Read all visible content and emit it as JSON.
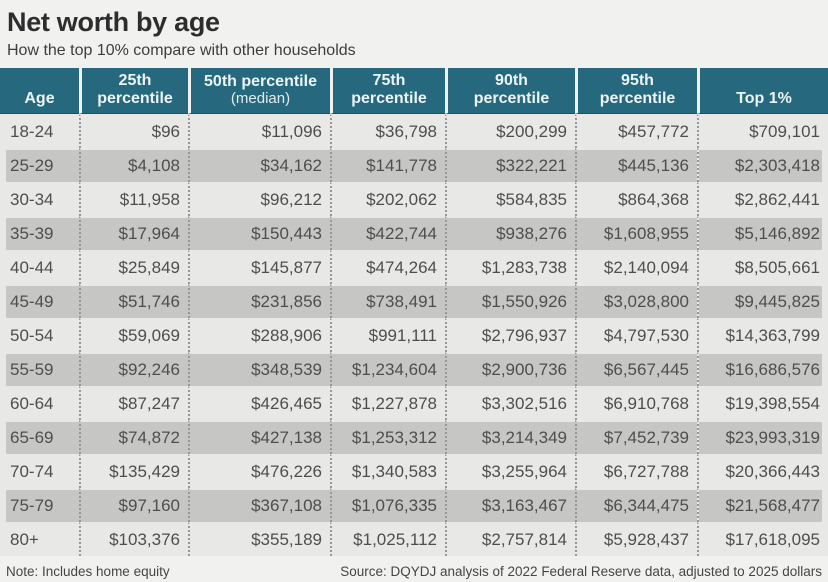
{
  "title": "Net worth by age",
  "subtitle": "How the top 10% compare with other households",
  "colors": {
    "header_bg": "#26697e",
    "header_text": "#edf4f6",
    "row_light": "#e8e8e7",
    "row_dark": "#c6c6c5",
    "page_bg": "#f1f1f0",
    "body_text": "#4e4e4e",
    "title_text": "#2d2d2d"
  },
  "table": {
    "columns": [
      {
        "line1": "Age",
        "line2": "",
        "sub_style": "bold"
      },
      {
        "line1": "25th",
        "line2": "percentile",
        "sub_style": "bold"
      },
      {
        "line1": "50th percentile",
        "line2": "(median)",
        "sub_style": "normal"
      },
      {
        "line1": "75th",
        "line2": "percentile",
        "sub_style": "bold"
      },
      {
        "line1": "90th",
        "line2": "percentile",
        "sub_style": "bold"
      },
      {
        "line1": "95th",
        "line2": "percentile",
        "sub_style": "bold"
      },
      {
        "line1": "Top 1%",
        "line2": "",
        "sub_style": "bold"
      }
    ]
  },
  "chart_data": {
    "type": "table",
    "title": "Net worth by age",
    "subtitle": "How the top 10% compare with other households",
    "columns": [
      "Age",
      "25th percentile",
      "50th percentile (median)",
      "75th percentile",
      "90th percentile",
      "95th percentile",
      "Top 1%"
    ],
    "currency_prefix": "$",
    "rows": [
      {
        "age": "18-24",
        "values": [
          96,
          11096,
          36798,
          200299,
          457772,
          709101
        ]
      },
      {
        "age": "25-29",
        "values": [
          4108,
          34162,
          141778,
          322221,
          445136,
          2303418
        ]
      },
      {
        "age": "30-34",
        "values": [
          11958,
          96212,
          202062,
          584835,
          864368,
          2862441
        ]
      },
      {
        "age": "35-39",
        "values": [
          17964,
          150443,
          422744,
          938276,
          1608955,
          5146892
        ]
      },
      {
        "age": "40-44",
        "values": [
          25849,
          145877,
          474264,
          1283738,
          2140094,
          8505661
        ]
      },
      {
        "age": "45-49",
        "values": [
          51746,
          231856,
          738491,
          1550926,
          3028800,
          9445825
        ]
      },
      {
        "age": "50-54",
        "values": [
          59069,
          288906,
          991111,
          2796937,
          4797530,
          14363799
        ]
      },
      {
        "age": "55-59",
        "values": [
          92246,
          348539,
          1234604,
          2900736,
          6567445,
          16686576
        ]
      },
      {
        "age": "60-64",
        "values": [
          87247,
          426465,
          1227878,
          3302516,
          6910768,
          19398554
        ]
      },
      {
        "age": "65-69",
        "values": [
          74872,
          427138,
          1253312,
          3214349,
          7452739,
          23993319
        ]
      },
      {
        "age": "70-74",
        "values": [
          135429,
          476226,
          1340583,
          3255964,
          6727788,
          20366443
        ]
      },
      {
        "age": "75-79",
        "values": [
          97160,
          367108,
          1076335,
          3163467,
          6344475,
          21568477
        ]
      },
      {
        "age": "80+",
        "values": [
          103376,
          355189,
          1025112,
          2757814,
          5928437,
          17618095
        ]
      }
    ]
  },
  "footer": {
    "note": "Note: Includes home equity",
    "source": "Source: DQYDJ analysis of 2022 Federal Reserve data, adjusted to 2025 dollars"
  }
}
